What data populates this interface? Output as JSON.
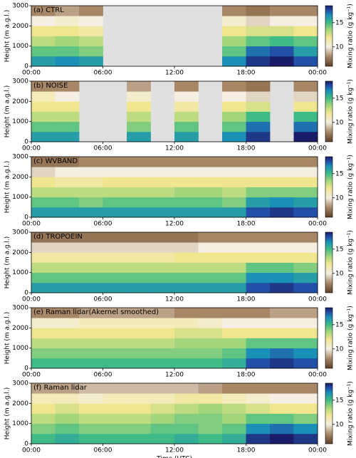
{
  "chart_data": [
    {
      "type": "heatmap",
      "title": "(a) CTRL",
      "ylabel": "Height (m a.g.l.)",
      "colorbar_label": "Mixing ratio (g kg⁻¹)",
      "x": [
        1,
        3,
        5,
        7,
        9,
        11,
        13,
        15,
        17,
        19,
        21,
        23
      ],
      "y": [
        250,
        750,
        1250,
        1750,
        2250,
        2750
      ],
      "z": [
        [
          16,
          16.5,
          16,
          null,
          null,
          null,
          null,
          null,
          16.5,
          18,
          18.5,
          17.5
        ],
        [
          14.5,
          14.5,
          14,
          null,
          null,
          null,
          null,
          null,
          14.5,
          17,
          17.5,
          16
        ],
        [
          13,
          13.5,
          13,
          null,
          null,
          null,
          null,
          null,
          13.5,
          14.5,
          15,
          14.5
        ],
        [
          12,
          12,
          11.5,
          null,
          null,
          null,
          null,
          null,
          12,
          12.5,
          12.5,
          12
        ],
        [
          10,
          10.5,
          10,
          null,
          null,
          null,
          null,
          null,
          10.5,
          9.5,
          10,
          10
        ],
        [
          8,
          8.5,
          8,
          null,
          null,
          null,
          null,
          null,
          8,
          7.5,
          8,
          8
        ]
      ],
      "xlim": [
        0,
        24
      ],
      "xticks": [
        {
          "value": 0,
          "label": "00:00"
        },
        {
          "value": 6,
          "label": "06:00"
        },
        {
          "value": 12,
          "label": "12:00"
        },
        {
          "value": 18,
          "label": "18:00"
        },
        {
          "value": 24,
          "label": "00:00"
        }
      ],
      "ylim": [
        0,
        3000
      ],
      "yticks": [
        0,
        1000,
        2000,
        3000
      ],
      "clim": [
        6,
        18.5
      ],
      "cticks": [
        10,
        15
      ]
    },
    {
      "type": "heatmap",
      "title": "(b) NOISE",
      "ylabel": "Height (m a.g.l.)",
      "colorbar_label": "Mixing ratio (g kg⁻¹)",
      "x": [
        1,
        3,
        5,
        7,
        9,
        11,
        13,
        15,
        17,
        19,
        21,
        23
      ],
      "y": [
        250,
        750,
        1250,
        1750,
        2250,
        2750
      ],
      "z": [
        [
          16,
          16,
          null,
          null,
          16,
          null,
          16,
          null,
          16.5,
          18,
          null,
          18.5
        ],
        [
          14.5,
          14.5,
          null,
          null,
          14,
          null,
          14.5,
          null,
          14.5,
          17,
          null,
          17
        ],
        [
          13,
          13,
          null,
          null,
          13,
          null,
          13,
          null,
          13.5,
          15,
          null,
          15
        ],
        [
          12,
          12,
          null,
          null,
          12,
          null,
          11.5,
          null,
          12,
          12.5,
          null,
          12
        ],
        [
          11,
          10,
          null,
          null,
          10.5,
          null,
          10,
          null,
          10,
          9.5,
          null,
          9.5
        ],
        [
          8,
          8,
          null,
          null,
          8.5,
          null,
          8,
          null,
          8,
          7.5,
          null,
          8
        ]
      ],
      "xlim": [
        0,
        24
      ],
      "xticks": [
        {
          "value": 0,
          "label": "00:00"
        },
        {
          "value": 6,
          "label": "06:00"
        },
        {
          "value": 12,
          "label": "12:00"
        },
        {
          "value": 18,
          "label": "18:00"
        },
        {
          "value": 24,
          "label": "00:00"
        }
      ],
      "ylim": [
        0,
        3000
      ],
      "yticks": [
        0,
        1000,
        2000,
        3000
      ],
      "clim": [
        6,
        18.5
      ],
      "cticks": [
        10,
        15
      ]
    },
    {
      "type": "heatmap",
      "title": "(c) WVBAND",
      "ylabel": "Height (m a.g.l.)",
      "colorbar_label": "Mixing ratio (g kg⁻¹)",
      "x": [
        1,
        3,
        5,
        7,
        9,
        11,
        13,
        15,
        17,
        19,
        21,
        23
      ],
      "y": [
        250,
        750,
        1250,
        1750,
        2250,
        2750
      ],
      "z": [
        [
          16,
          16,
          16,
          16,
          16,
          16,
          16,
          16,
          16,
          17.5,
          18,
          17.5
        ],
        [
          14.5,
          14.5,
          14,
          14.5,
          14.5,
          14.5,
          14.5,
          14.5,
          14,
          16,
          16.5,
          16
        ],
        [
          13,
          13,
          13,
          13,
          13,
          13,
          13.5,
          13.5,
          13,
          14,
          14,
          14
        ],
        [
          12,
          11.5,
          11.5,
          12,
          12,
          12,
          12,
          12,
          12,
          12,
          12,
          12
        ],
        [
          9.5,
          10,
          10,
          10,
          10,
          10,
          10,
          10,
          10,
          10,
          10,
          10
        ],
        [
          7.5,
          7.5,
          8,
          8,
          8,
          8,
          8,
          8,
          8,
          8,
          8,
          8
        ]
      ],
      "xlim": [
        0,
        24
      ],
      "xticks": [
        {
          "value": 0,
          "label": "00:00"
        },
        {
          "value": 6,
          "label": "06:00"
        },
        {
          "value": 12,
          "label": "12:00"
        },
        {
          "value": 18,
          "label": "18:00"
        },
        {
          "value": 24,
          "label": "00:00"
        }
      ],
      "ylim": [
        0,
        3000
      ],
      "yticks": [
        0,
        1000,
        2000,
        3000
      ],
      "clim": [
        6,
        18.5
      ],
      "cticks": [
        10,
        15
      ]
    },
    {
      "type": "heatmap",
      "title": "(d) TROPOEIN",
      "ylabel": "Height (m a.g.l.)",
      "colorbar_label": "Mixing ratio (g kg⁻¹)",
      "x": [
        1,
        3,
        5,
        7,
        9,
        11,
        13,
        15,
        17,
        19,
        21,
        23
      ],
      "y": [
        250,
        750,
        1250,
        1750,
        2250,
        2750
      ],
      "z": [
        [
          16,
          16,
          16,
          16,
          16,
          16,
          16,
          16,
          16,
          17.5,
          18,
          17.5
        ],
        [
          14.5,
          14.5,
          14.5,
          14.5,
          14.5,
          14.5,
          14.5,
          14.5,
          14.5,
          16.5,
          16.5,
          16
        ],
        [
          13,
          13,
          13,
          13,
          13,
          13,
          13,
          13,
          13,
          14.5,
          14.5,
          14
        ],
        [
          11.5,
          11.5,
          11.5,
          11.5,
          11.5,
          11.5,
          12,
          12,
          12,
          12,
          12,
          12
        ],
        [
          9.5,
          9.5,
          9.5,
          9.5,
          9.5,
          9.5,
          9.5,
          10,
          10,
          10,
          10,
          10
        ],
        [
          7.5,
          7.5,
          7.5,
          7.5,
          7.5,
          7.5,
          7.5,
          8,
          8,
          8,
          8,
          8
        ]
      ],
      "xlim": [
        0,
        24
      ],
      "xticks": [
        {
          "value": 0,
          "label": "00:00"
        },
        {
          "value": 6,
          "label": "06:00"
        },
        {
          "value": 12,
          "label": "12:00"
        },
        {
          "value": 18,
          "label": "18:00"
        },
        {
          "value": 24,
          "label": "00:00"
        }
      ],
      "ylim": [
        0,
        3000
      ],
      "yticks": [
        0,
        1000,
        2000,
        3000
      ],
      "clim": [
        6,
        18.5
      ],
      "cticks": [
        10,
        15
      ]
    },
    {
      "type": "heatmap",
      "title": "(e) Raman lidar(Akernel smoothed)",
      "ylabel": "Height (m a.g.l.)",
      "colorbar_label": "Mixing ratio (g kg⁻¹)",
      "x": [
        1,
        3,
        5,
        7,
        9,
        11,
        13,
        15,
        17,
        19,
        21,
        23
      ],
      "y": [
        250,
        750,
        1250,
        1750,
        2250,
        2750
      ],
      "z": [
        [
          15,
          15,
          15,
          15,
          15,
          15,
          15,
          15,
          15.5,
          17.5,
          18,
          17.5
        ],
        [
          14,
          14,
          14,
          14,
          14,
          14,
          14,
          14,
          14.5,
          16.5,
          17,
          16.5
        ],
        [
          13,
          13,
          13,
          13,
          13,
          13,
          13.5,
          13.5,
          13.5,
          14.5,
          14.5,
          14.5
        ],
        [
          12,
          12,
          12,
          12,
          12,
          12,
          12.5,
          12.5,
          12,
          12,
          12,
          12
        ],
        [
          10.5,
          10.5,
          11,
          11,
          11,
          11,
          11,
          10.5,
          10,
          10,
          10,
          10
        ],
        [
          8,
          8,
          8.5,
          8.5,
          8.5,
          8.5,
          8,
          8,
          8,
          8,
          8.5,
          8.5
        ]
      ],
      "xlim": [
        0,
        24
      ],
      "xticks": [
        {
          "value": 0,
          "label": "00:00"
        },
        {
          "value": 6,
          "label": "06:00"
        },
        {
          "value": 12,
          "label": "12:00"
        },
        {
          "value": 18,
          "label": "18:00"
        },
        {
          "value": 24,
          "label": "00:00"
        }
      ],
      "ylim": [
        0,
        3000
      ],
      "yticks": [
        0,
        1000,
        2000,
        3000
      ],
      "clim": [
        6,
        18.5
      ],
      "cticks": [
        10,
        15
      ]
    },
    {
      "type": "heatmap",
      "title": "(f) Raman lidar",
      "ylabel": "Height (m a.g.l.)",
      "colorbar_label": "Mixing ratio (g kg⁻¹)",
      "xlabel": "Time (UTC)",
      "x": [
        1,
        3,
        5,
        7,
        9,
        11,
        13,
        15,
        17,
        19,
        21,
        23
      ],
      "y": [
        250,
        750,
        1250,
        1750,
        2250,
        2750
      ],
      "z": [
        [
          15,
          15.5,
          15,
          15,
          15,
          15,
          15.5,
          15,
          15.5,
          18,
          18.5,
          18
        ],
        [
          14,
          14.5,
          14,
          14,
          14,
          14.5,
          14.5,
          14,
          14.5,
          16.5,
          17,
          16.5
        ],
        [
          13,
          13.5,
          13,
          13,
          13,
          13.5,
          14,
          14,
          13.5,
          14.5,
          14.5,
          14
        ],
        [
          12,
          12.5,
          12,
          12,
          12,
          12.5,
          13,
          13.5,
          13,
          12.5,
          12,
          12
        ],
        [
          11,
          11,
          10.5,
          11,
          11,
          11,
          11.5,
          11.5,
          11,
          10.5,
          10,
          10
        ],
        [
          8.5,
          8.5,
          9,
          9,
          9,
          9,
          9,
          8.5,
          8,
          8,
          8,
          8
        ]
      ],
      "xlim": [
        0,
        24
      ],
      "xticks": [
        {
          "value": 0,
          "label": "00:00"
        },
        {
          "value": 6,
          "label": "06:00"
        },
        {
          "value": 12,
          "label": "12:00"
        },
        {
          "value": 18,
          "label": "18:00"
        },
        {
          "value": 24,
          "label": "00:00"
        }
      ],
      "ylim": [
        0,
        3000
      ],
      "yticks": [
        0,
        1000,
        2000,
        3000
      ],
      "clim": [
        6,
        18.5
      ],
      "cticks": [
        10,
        15
      ]
    }
  ],
  "colormap": [
    [
      6,
      "#5e3f27"
    ],
    [
      8,
      "#a88767"
    ],
    [
      10,
      "#f4efe2"
    ],
    [
      12,
      "#f1e690"
    ],
    [
      13.5,
      "#a3d67a"
    ],
    [
      15,
      "#3fbb88"
    ],
    [
      16.5,
      "#1b90b6"
    ],
    [
      17.5,
      "#2150a6"
    ],
    [
      18.5,
      "#1b1d68"
    ]
  ]
}
